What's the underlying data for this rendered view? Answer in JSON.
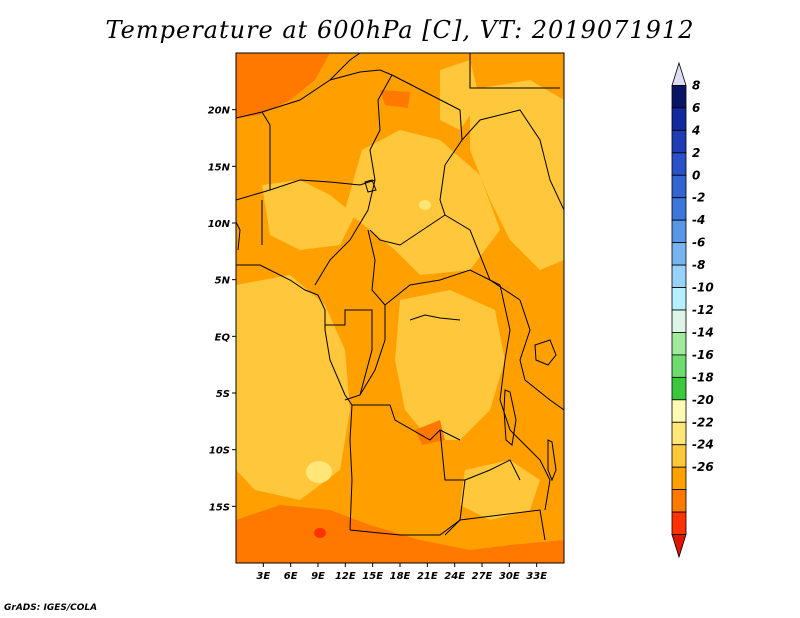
{
  "title": "Temperature at 600hPa [C], VT: 2019071912",
  "credit": "GrADS: IGES/COLA",
  "map": {
    "projection": "lat-lon",
    "lon_range": [
      0,
      36
    ],
    "lat_range": [
      -20,
      25
    ],
    "lat_ticks": [
      {
        "value": 20,
        "label": "20N"
      },
      {
        "value": 15,
        "label": "15N"
      },
      {
        "value": 10,
        "label": "10N"
      },
      {
        "value": 5,
        "label": "5N"
      },
      {
        "value": 0,
        "label": "EQ"
      },
      {
        "value": -5,
        "label": "5S"
      },
      {
        "value": -10,
        "label": "10S"
      },
      {
        "value": -15,
        "label": "15S"
      }
    ],
    "lon_ticks": [
      {
        "value": 3,
        "label": "3E"
      },
      {
        "value": 6,
        "label": "6E"
      },
      {
        "value": 9,
        "label": "9E"
      },
      {
        "value": 12,
        "label": "12E"
      },
      {
        "value": 15,
        "label": "15E"
      },
      {
        "value": 18,
        "label": "18E"
      },
      {
        "value": 21,
        "label": "21E"
      },
      {
        "value": 24,
        "label": "24E"
      },
      {
        "value": 27,
        "label": "27E"
      },
      {
        "value": 30,
        "label": "30E"
      },
      {
        "value": 33,
        "label": "33E"
      }
    ]
  },
  "colorbar": {
    "colors": [
      "#dcdcf5",
      "#0a1464",
      "#1428a0",
      "#1e3cb4",
      "#2850c8",
      "#3264d2",
      "#3c78dc",
      "#5a96e6",
      "#78b4f0",
      "#96d2fa",
      "#b4f0ff",
      "#dcf5e6",
      "#a0eb9b",
      "#6edc6e",
      "#3cc83c",
      "#fffab4",
      "#ffe678",
      "#ffc83c",
      "#ffa000",
      "#ff7800",
      "#ff3200",
      "#e11400"
    ],
    "labels": [
      "8",
      "6",
      "4",
      "2",
      "0",
      "-2",
      "-4",
      "-6",
      "-8",
      "-10",
      "-12",
      "-14",
      "-16",
      "-18",
      "-20",
      "-22",
      "-24",
      "-26"
    ]
  },
  "field_colors": {
    "temp_4_6": "#ff7800",
    "temp_2_4": "#ffa000",
    "temp_0_2": "#ffc83c",
    "temp_m2_0": "#ffe678",
    "temp_6_8": "#ff3200"
  }
}
